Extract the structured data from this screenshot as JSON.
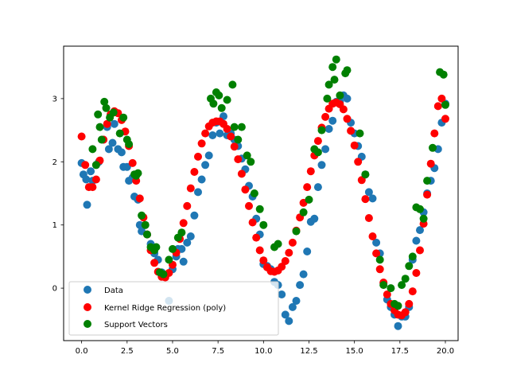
{
  "chart_data": {
    "type": "scatter",
    "title": "",
    "xlabel": "",
    "ylabel": "",
    "xlim": [
      -0.99,
      20.7
    ],
    "ylim": [
      -0.83,
      3.83
    ],
    "xticks": [
      0.0,
      2.5,
      5.0,
      7.5,
      10.0,
      12.5,
      15.0,
      17.5,
      20.0
    ],
    "xtick_labels": [
      "0.0",
      "2.5",
      "5.0",
      "7.5",
      "10.0",
      "12.5",
      "15.0",
      "17.5",
      "20.0"
    ],
    "yticks": [
      0,
      1,
      2,
      3
    ],
    "ytick_labels": [
      "0",
      "1",
      "2",
      "3"
    ],
    "grid": false,
    "legend_position": "lower-left",
    "series": [
      {
        "name": "Data",
        "color": "#1f77b4",
        "points": [
          [
            0.0,
            1.98
          ],
          [
            0.1,
            1.8
          ],
          [
            0.25,
            1.72
          ],
          [
            0.3,
            1.32
          ],
          [
            0.5,
            1.85
          ],
          [
            0.6,
            1.7
          ],
          [
            0.8,
            1.95
          ],
          [
            0.95,
            2.0
          ],
          [
            1.2,
            2.35
          ],
          [
            1.4,
            2.55
          ],
          [
            1.5,
            2.2
          ],
          [
            1.6,
            2.75
          ],
          [
            1.7,
            2.3
          ],
          [
            1.8,
            2.6
          ],
          [
            2.0,
            2.2
          ],
          [
            2.2,
            2.15
          ],
          [
            2.3,
            1.92
          ],
          [
            2.5,
            1.92
          ],
          [
            2.6,
            1.7
          ],
          [
            2.8,
            1.75
          ],
          [
            2.9,
            1.45
          ],
          [
            3.1,
            1.4
          ],
          [
            3.2,
            1.0
          ],
          [
            3.3,
            0.9
          ],
          [
            3.5,
            1.0
          ],
          [
            3.6,
            0.85
          ],
          [
            3.8,
            0.7
          ],
          [
            4.0,
            0.55
          ],
          [
            4.2,
            0.45
          ],
          [
            4.4,
            0.25
          ],
          [
            4.6,
            0.2
          ],
          [
            4.8,
            -0.2
          ],
          [
            5.0,
            0.3
          ],
          [
            5.2,
            0.5
          ],
          [
            5.3,
            0.62
          ],
          [
            5.5,
            0.62
          ],
          [
            5.6,
            0.42
          ],
          [
            5.8,
            0.72
          ],
          [
            6.0,
            0.82
          ],
          [
            6.2,
            1.15
          ],
          [
            6.4,
            1.52
          ],
          [
            6.6,
            1.72
          ],
          [
            6.8,
            1.95
          ],
          [
            7.0,
            2.1
          ],
          [
            7.2,
            2.42
          ],
          [
            7.4,
            2.62
          ],
          [
            7.6,
            2.45
          ],
          [
            7.8,
            2.72
          ],
          [
            8.0,
            2.42
          ],
          [
            8.2,
            2.45
          ],
          [
            8.4,
            2.35
          ],
          [
            8.6,
            2.25
          ],
          [
            8.8,
            2.05
          ],
          [
            9.0,
            1.88
          ],
          [
            9.2,
            1.62
          ],
          [
            9.4,
            1.45
          ],
          [
            9.6,
            1.1
          ],
          [
            9.8,
            0.85
          ],
          [
            10.0,
            0.38
          ],
          [
            10.2,
            0.35
          ],
          [
            10.4,
            0.3
          ],
          [
            10.6,
            0.1
          ],
          [
            10.8,
            0.05
          ],
          [
            11.0,
            -0.1
          ],
          [
            11.2,
            -0.42
          ],
          [
            11.4,
            -0.52
          ],
          [
            11.6,
            -0.3
          ],
          [
            11.8,
            -0.2
          ],
          [
            12.0,
            0.05
          ],
          [
            12.2,
            0.22
          ],
          [
            12.4,
            0.58
          ],
          [
            12.6,
            1.05
          ],
          [
            12.8,
            1.1
          ],
          [
            13.0,
            1.6
          ],
          [
            13.2,
            1.95
          ],
          [
            13.4,
            2.2
          ],
          [
            13.6,
            2.52
          ],
          [
            13.8,
            2.65
          ],
          [
            14.0,
            2.95
          ],
          [
            14.2,
            2.95
          ],
          [
            14.4,
            3.05
          ],
          [
            14.6,
            3.0
          ],
          [
            14.8,
            2.62
          ],
          [
            15.0,
            2.45
          ],
          [
            15.2,
            2.25
          ],
          [
            15.4,
            2.08
          ],
          [
            15.6,
            1.8
          ],
          [
            15.8,
            1.52
          ],
          [
            16.0,
            1.42
          ],
          [
            16.2,
            0.72
          ],
          [
            16.4,
            0.55
          ],
          [
            16.6,
            0.08
          ],
          [
            16.8,
            -0.18
          ],
          [
            17.0,
            -0.3
          ],
          [
            17.2,
            -0.42
          ],
          [
            17.4,
            -0.6
          ],
          [
            17.6,
            -0.45
          ],
          [
            17.8,
            -0.45
          ],
          [
            18.0,
            -0.3
          ],
          [
            18.2,
            0.45
          ],
          [
            18.4,
            0.75
          ],
          [
            18.6,
            0.92
          ],
          [
            18.8,
            1.2
          ],
          [
            19.0,
            1.5
          ],
          [
            19.2,
            1.7
          ],
          [
            19.4,
            1.9
          ],
          [
            19.6,
            2.2
          ],
          [
            19.8,
            2.62
          ],
          [
            20.0,
            2.92
          ]
        ]
      },
      {
        "name": "Kernel Ridge Regression (poly)",
        "color": "#ff0000",
        "points": [
          [
            0.0,
            2.4
          ],
          [
            0.2,
            1.95
          ],
          [
            0.4,
            1.6
          ],
          [
            0.6,
            1.6
          ],
          [
            0.8,
            1.72
          ],
          [
            1.0,
            2.02
          ],
          [
            1.2,
            2.35
          ],
          [
            1.4,
            2.6
          ],
          [
            1.6,
            2.75
          ],
          [
            1.8,
            2.8
          ],
          [
            2.0,
            2.77
          ],
          [
            2.2,
            2.66
          ],
          [
            2.4,
            2.48
          ],
          [
            2.6,
            2.25
          ],
          [
            2.8,
            1.98
          ],
          [
            3.0,
            1.7
          ],
          [
            3.2,
            1.42
          ],
          [
            3.4,
            1.12
          ],
          [
            3.6,
            0.85
          ],
          [
            3.8,
            0.6
          ],
          [
            4.0,
            0.4
          ],
          [
            4.2,
            0.26
          ],
          [
            4.4,
            0.18
          ],
          [
            4.6,
            0.17
          ],
          [
            4.8,
            0.24
          ],
          [
            5.0,
            0.37
          ],
          [
            5.2,
            0.56
          ],
          [
            5.4,
            0.78
          ],
          [
            5.6,
            1.03
          ],
          [
            5.8,
            1.3
          ],
          [
            6.0,
            1.58
          ],
          [
            6.2,
            1.84
          ],
          [
            6.4,
            2.08
          ],
          [
            6.6,
            2.29
          ],
          [
            6.8,
            2.45
          ],
          [
            7.0,
            2.56
          ],
          [
            7.2,
            2.62
          ],
          [
            7.4,
            2.64
          ],
          [
            7.6,
            2.64
          ],
          [
            7.8,
            2.6
          ],
          [
            8.0,
            2.52
          ],
          [
            8.2,
            2.4
          ],
          [
            8.4,
            2.24
          ],
          [
            8.6,
            2.04
          ],
          [
            8.8,
            1.81
          ],
          [
            9.0,
            1.56
          ],
          [
            9.2,
            1.3
          ],
          [
            9.4,
            1.04
          ],
          [
            9.6,
            0.8
          ],
          [
            9.8,
            0.6
          ],
          [
            10.0,
            0.44
          ],
          [
            10.2,
            0.33
          ],
          [
            10.4,
            0.27
          ],
          [
            10.6,
            0.26
          ],
          [
            10.8,
            0.28
          ],
          [
            11.0,
            0.34
          ],
          [
            11.2,
            0.43
          ],
          [
            11.4,
            0.56
          ],
          [
            11.6,
            0.72
          ],
          [
            11.8,
            0.91
          ],
          [
            12.0,
            1.12
          ],
          [
            12.2,
            1.35
          ],
          [
            12.4,
            1.6
          ],
          [
            12.6,
            1.85
          ],
          [
            12.8,
            2.1
          ],
          [
            13.0,
            2.33
          ],
          [
            13.2,
            2.54
          ],
          [
            13.4,
            2.71
          ],
          [
            13.6,
            2.84
          ],
          [
            13.8,
            2.92
          ],
          [
            14.0,
            2.94
          ],
          [
            14.2,
            2.91
          ],
          [
            14.4,
            2.83
          ],
          [
            14.6,
            2.68
          ],
          [
            14.8,
            2.49
          ],
          [
            15.0,
            2.26
          ],
          [
            15.2,
            2.0
          ],
          [
            15.4,
            1.71
          ],
          [
            15.6,
            1.41
          ],
          [
            15.8,
            1.11
          ],
          [
            16.0,
            0.82
          ],
          [
            16.2,
            0.55
          ],
          [
            16.4,
            0.3
          ],
          [
            16.6,
            0.09
          ],
          [
            16.8,
            -0.1
          ],
          [
            17.0,
            -0.25
          ],
          [
            17.2,
            -0.35
          ],
          [
            17.4,
            -0.42
          ],
          [
            17.6,
            -0.43
          ],
          [
            17.8,
            -0.38
          ],
          [
            18.0,
            -0.25
          ],
          [
            18.2,
            -0.05
          ],
          [
            18.4,
            0.24
          ],
          [
            18.6,
            0.6
          ],
          [
            18.8,
            1.02
          ],
          [
            19.0,
            1.48
          ],
          [
            19.2,
            1.97
          ],
          [
            19.4,
            2.45
          ],
          [
            19.6,
            2.88
          ],
          [
            19.8,
            3.0
          ],
          [
            20.0,
            2.68
          ]
        ]
      },
      {
        "name": "Support Vectors",
        "color": "#008000",
        "points": [
          [
            0.6,
            2.2
          ],
          [
            0.8,
            1.95
          ],
          [
            0.9,
            2.75
          ],
          [
            1.0,
            2.55
          ],
          [
            1.1,
            2.35
          ],
          [
            1.25,
            2.95
          ],
          [
            1.35,
            2.85
          ],
          [
            1.55,
            2.7
          ],
          [
            1.75,
            2.78
          ],
          [
            2.1,
            2.45
          ],
          [
            2.3,
            2.7
          ],
          [
            2.5,
            2.35
          ],
          [
            2.6,
            2.28
          ],
          [
            2.9,
            1.8
          ],
          [
            3.0,
            1.78
          ],
          [
            3.1,
            1.82
          ],
          [
            3.3,
            1.15
          ],
          [
            3.5,
            1.0
          ],
          [
            3.6,
            0.85
          ],
          [
            3.8,
            0.65
          ],
          [
            4.0,
            0.6
          ],
          [
            4.1,
            0.65
          ],
          [
            4.3,
            0.25
          ],
          [
            4.5,
            0.22
          ],
          [
            4.8,
            0.45
          ],
          [
            5.0,
            0.62
          ],
          [
            5.3,
            0.8
          ],
          [
            5.5,
            0.88
          ],
          [
            7.1,
            3.0
          ],
          [
            7.25,
            2.92
          ],
          [
            7.4,
            3.1
          ],
          [
            7.55,
            3.05
          ],
          [
            7.7,
            2.85
          ],
          [
            8.0,
            2.98
          ],
          [
            8.3,
            3.22
          ],
          [
            8.4,
            2.55
          ],
          [
            8.6,
            2.35
          ],
          [
            8.8,
            2.55
          ],
          [
            9.1,
            2.1
          ],
          [
            9.3,
            2.0
          ],
          [
            9.5,
            1.5
          ],
          [
            9.8,
            1.25
          ],
          [
            10.0,
            1.0
          ],
          [
            10.6,
            0.65
          ],
          [
            10.8,
            0.7
          ],
          [
            11.8,
            0.9
          ],
          [
            12.2,
            1.2
          ],
          [
            12.5,
            1.4
          ],
          [
            12.8,
            2.2
          ],
          [
            13.0,
            2.15
          ],
          [
            13.2,
            2.5
          ],
          [
            13.5,
            3.0
          ],
          [
            13.6,
            3.22
          ],
          [
            13.8,
            3.5
          ],
          [
            13.9,
            3.3
          ],
          [
            14.0,
            3.62
          ],
          [
            14.2,
            3.05
          ],
          [
            14.5,
            3.4
          ],
          [
            14.6,
            3.45
          ],
          [
            15.3,
            2.45
          ],
          [
            15.6,
            1.8
          ],
          [
            16.4,
            0.45
          ],
          [
            16.6,
            0.05
          ],
          [
            17.0,
            0.0
          ],
          [
            17.2,
            -0.25
          ],
          [
            17.4,
            -0.28
          ],
          [
            17.6,
            0.05
          ],
          [
            17.8,
            0.15
          ],
          [
            18.0,
            0.35
          ],
          [
            18.2,
            0.5
          ],
          [
            18.4,
            1.28
          ],
          [
            18.6,
            1.25
          ],
          [
            18.8,
            1.1
          ],
          [
            19.0,
            1.7
          ],
          [
            19.3,
            2.22
          ],
          [
            19.7,
            3.42
          ],
          [
            19.9,
            3.38
          ],
          [
            20.0,
            2.9
          ]
        ]
      }
    ]
  }
}
